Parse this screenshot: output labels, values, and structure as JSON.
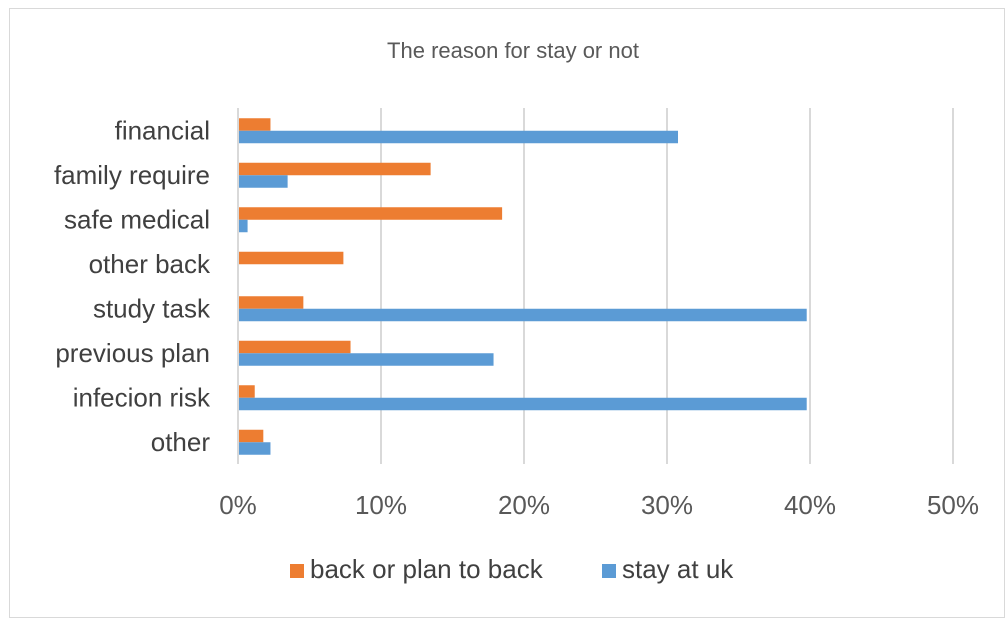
{
  "chart_data": {
    "type": "bar",
    "orientation": "horizontal",
    "title": "The reason for stay or not",
    "categories": [
      "financial",
      "family require",
      "safe medical",
      "other back",
      "study task",
      "previous plan",
      "infecion risk",
      "other"
    ],
    "series": [
      {
        "name": "back or plan to back",
        "color": "#ED7D31",
        "values": [
          0.022,
          0.134,
          0.184,
          0.073,
          0.045,
          0.078,
          0.011,
          0.017
        ]
      },
      {
        "name": "stay at uk",
        "color": "#5B9BD5",
        "values": [
          0.307,
          0.034,
          0.006,
          0.0,
          0.397,
          0.178,
          0.397,
          0.022
        ]
      }
    ],
    "xlim": [
      0,
      0.5
    ],
    "xticks": [
      0,
      0.1,
      0.2,
      0.3,
      0.4,
      0.5
    ],
    "xtick_labels": [
      "0%",
      "10%",
      "20%",
      "30%",
      "40%",
      "50%"
    ],
    "grid": true,
    "legend": "bottom"
  }
}
